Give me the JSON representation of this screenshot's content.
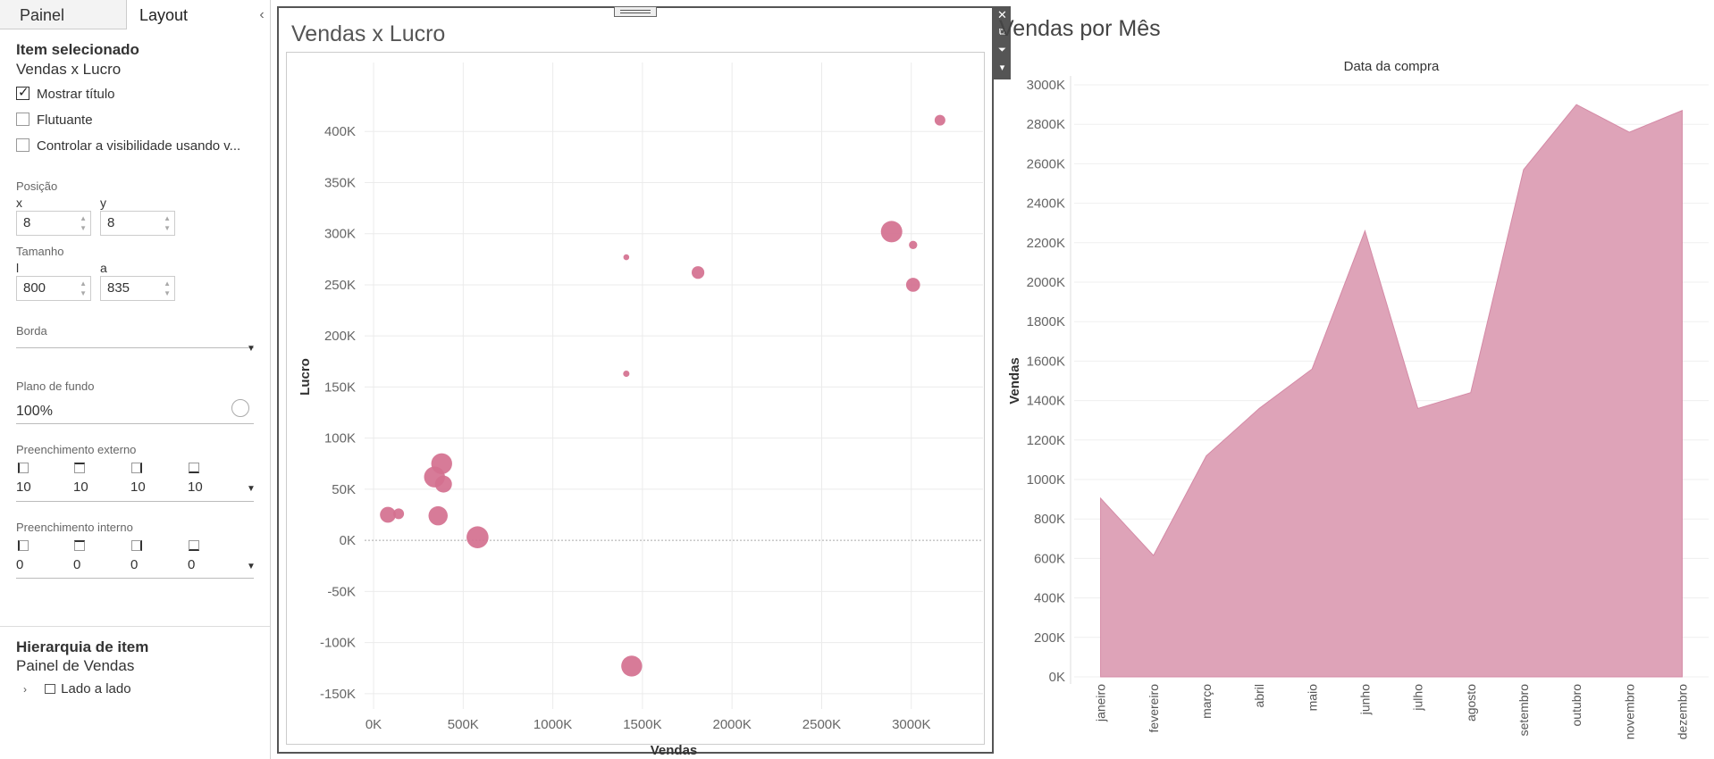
{
  "left_panel": {
    "tabs": [
      "Painel",
      "Layout"
    ],
    "collapse_glyph": "‹",
    "selected": {
      "heading": "Item selecionado",
      "name": "Vendas x Lucro"
    },
    "checkboxes": [
      {
        "label": "Mostrar título",
        "checked": true
      },
      {
        "label": "Flutuante",
        "checked": false
      },
      {
        "label": "Controlar a visibilidade usando v...",
        "checked": false
      }
    ],
    "position": {
      "label": "Posição",
      "x_label": "x",
      "y_label": "y",
      "x": "8",
      "y": "8"
    },
    "size": {
      "label": "Tamanho",
      "w_label": "l",
      "h_label": "a",
      "w": "800",
      "h": "835"
    },
    "border_label": "Borda",
    "background": {
      "label": "Plano de fundo",
      "value": "100%"
    },
    "outer_padding": {
      "label": "Preenchimento externo",
      "values": [
        "10",
        "10",
        "10",
        "10"
      ]
    },
    "inner_padding": {
      "label": "Preenchimento interno",
      "values": [
        "0",
        "0",
        "0",
        "0"
      ]
    },
    "hierarchy": {
      "heading": "Hierarquia de item",
      "name": "Painel de Vendas",
      "child": "Lado a lado"
    }
  },
  "toolbar": {
    "close": "✕",
    "popout": "⧉",
    "filter": "⏷",
    "more": "▾"
  },
  "scatter": {
    "title": "Vendas x Lucro",
    "chart_data": {
      "type": "scatter",
      "title": "Vendas x Lucro",
      "xlabel": "Vendas",
      "ylabel": "Lucro",
      "xlim": [
        -50000,
        3400000
      ],
      "ylim": [
        -165000,
        450000
      ],
      "xticks": [
        0,
        500000,
        1000000,
        1500000,
        2000000,
        2500000,
        3000000
      ],
      "xtick_labels": [
        "0K",
        "500K",
        "1000K",
        "1500K",
        "2000K",
        "2500K",
        "3000K"
      ],
      "yticks": [
        -150000,
        -100000,
        -50000,
        0,
        50000,
        100000,
        150000,
        200000,
        250000,
        300000,
        350000,
        400000
      ],
      "ytick_labels": [
        "-150K",
        "-100K",
        "-50K",
        "0K",
        "50K",
        "100K",
        "150K",
        "200K",
        "250K",
        "300K",
        "350K",
        "400K"
      ],
      "grid": true,
      "color": "#d4708f",
      "points": [
        {
          "x": 3160000,
          "y": 411000,
          "size": 1
        },
        {
          "x": 2890000,
          "y": 302000,
          "size": 4
        },
        {
          "x": 3010000,
          "y": 289000,
          "size": 0.6
        },
        {
          "x": 3010000,
          "y": 250000,
          "size": 1.7
        },
        {
          "x": 1410000,
          "y": 277000,
          "size": 0.3
        },
        {
          "x": 1810000,
          "y": 262000,
          "size": 1.4
        },
        {
          "x": 1410000,
          "y": 163000,
          "size": 0.35
        },
        {
          "x": 380000,
          "y": 75000,
          "size": 3.8
        },
        {
          "x": 340000,
          "y": 62000,
          "size": 3.8
        },
        {
          "x": 390000,
          "y": 55000,
          "size": 2.5
        },
        {
          "x": 80000,
          "y": 25000,
          "size": 2.2
        },
        {
          "x": 140000,
          "y": 26000,
          "size": 1
        },
        {
          "x": 360000,
          "y": 24000,
          "size": 3.2
        },
        {
          "x": 580000,
          "y": 3000,
          "size": 4.2
        },
        {
          "x": 1440000,
          "y": -123000,
          "size": 3.8
        }
      ]
    }
  },
  "area": {
    "title": "Vendas por Mês",
    "chart_data": {
      "type": "area",
      "title": "Vendas por Mês",
      "header": "Data da compra",
      "ylabel": "Vendas",
      "categories": [
        "janeiro",
        "fevereiro",
        "março",
        "abril",
        "maio",
        "junho",
        "julho",
        "agosto",
        "setembro",
        "outubro",
        "novembro",
        "dezembro"
      ],
      "values": [
        905000,
        615000,
        1120000,
        1360000,
        1560000,
        2260000,
        1360000,
        1440000,
        2570000,
        2900000,
        2760000,
        2870000
      ],
      "ylim": [
        0,
        3000000
      ],
      "yticks": [
        0,
        200000,
        400000,
        600000,
        800000,
        1000000,
        1200000,
        1400000,
        1600000,
        1800000,
        2000000,
        2200000,
        2400000,
        2600000,
        2800000,
        3000000
      ],
      "ytick_labels": [
        "0K",
        "200K",
        "400K",
        "600K",
        "800K",
        "1000K",
        "1200K",
        "1400K",
        "1600K",
        "1800K",
        "2000K",
        "2200K",
        "2400K",
        "2600K",
        "2800K",
        "3000K"
      ],
      "grid": true,
      "color": "#dea3b8"
    }
  }
}
